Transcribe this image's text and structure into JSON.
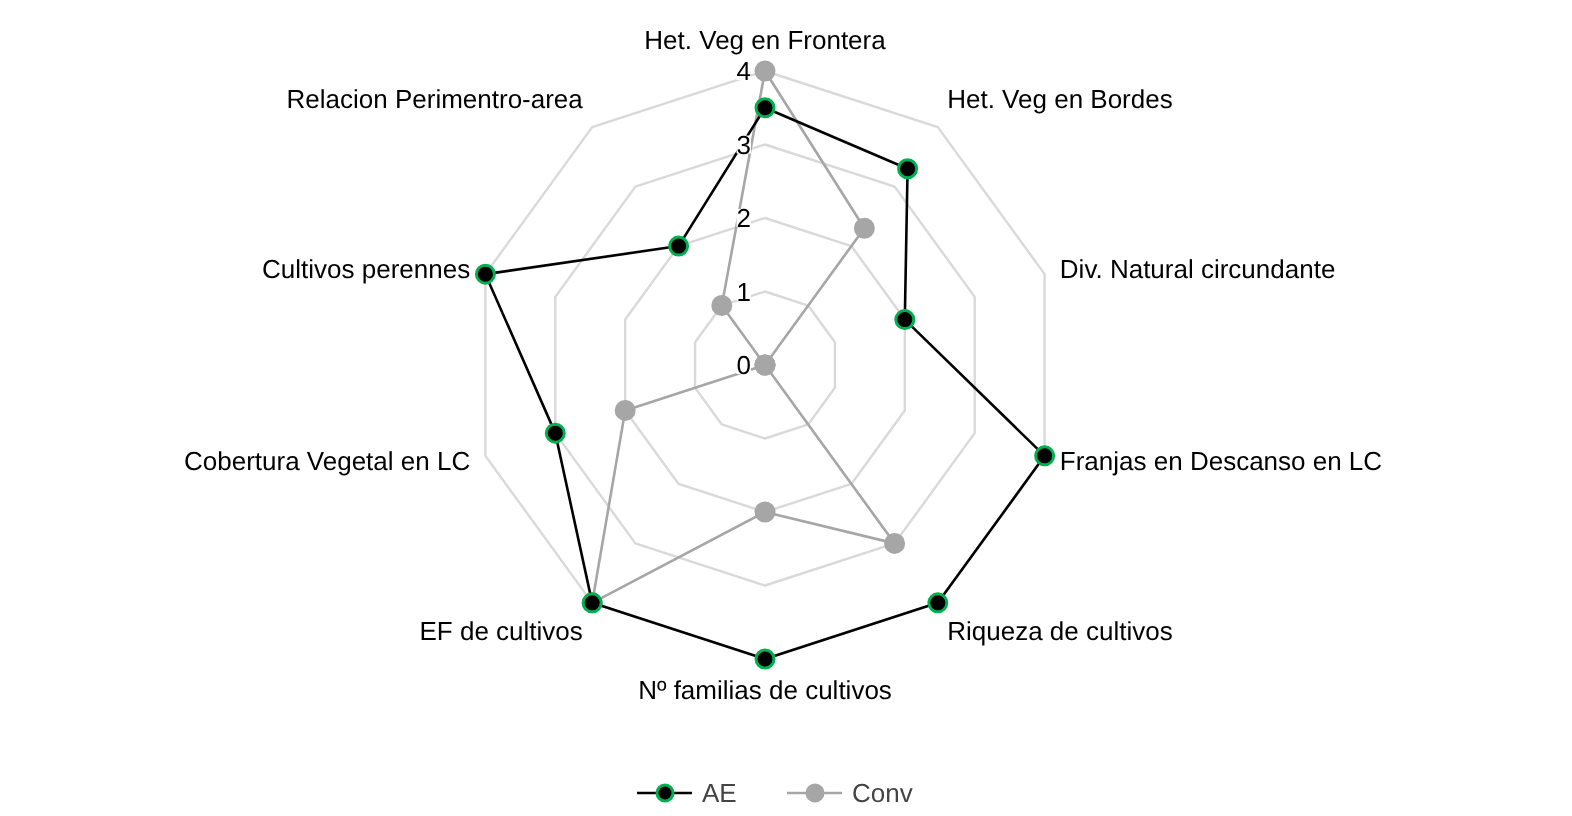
{
  "chart_data": {
    "type": "radar",
    "categories": [
      "Het. Veg en Frontera",
      "Het. Veg en Bordes",
      "Div. Natural circundante",
      "Franjas en Descanso en LC",
      "Riqueza de cultivos",
      "Nº familias de cultivos",
      "EF de cultivos",
      "Cobertura Vegetal en LC",
      "Cultivos perennes",
      "Relacion Perimentro-area"
    ],
    "series": [
      {
        "name": "AE",
        "color": "#000000",
        "values": [
          3.5,
          3.3,
          2,
          4,
          4,
          4,
          4,
          3,
          4,
          2
        ]
      },
      {
        "name": "Conv",
        "color": "#a6a6a6",
        "values": [
          4,
          2.3,
          0,
          0,
          3,
          2,
          4,
          2,
          0,
          1
        ]
      }
    ],
    "ylim": [
      0,
      4
    ],
    "yticks": [
      0,
      1,
      2,
      3,
      4
    ],
    "grid": true,
    "legend": "bottom",
    "marker": "circle",
    "line_style": "solid"
  }
}
